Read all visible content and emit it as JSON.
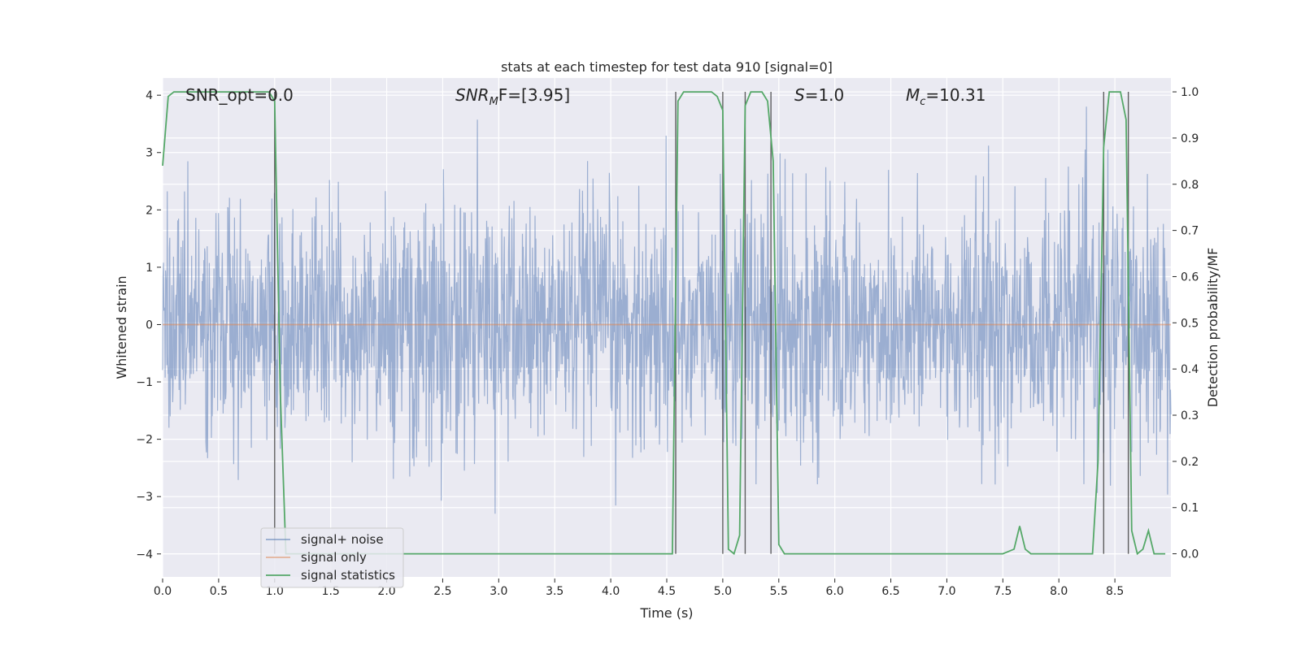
{
  "chart_data": {
    "type": "line",
    "title": "stats at each timestep for test data 910 [signal=0]",
    "xlabel": "Time (s)",
    "ylabel_left": "Whitened strain",
    "ylabel_right": "Detection probability/MF",
    "xlim": [
      0.0,
      9.0
    ],
    "ylim_left": [
      -4.4,
      4.3
    ],
    "ylim_right": [
      -0.05,
      1.03
    ],
    "x_ticks": [
      "0.0",
      "0.5",
      "1.0",
      "1.5",
      "2.0",
      "2.5",
      "3.0",
      "3.5",
      "4.0",
      "4.5",
      "5.0",
      "5.5",
      "6.0",
      "6.5",
      "7.0",
      "7.5",
      "8.0",
      "8.5"
    ],
    "x_tick_values": [
      0.0,
      0.5,
      1.0,
      1.5,
      2.0,
      2.5,
      3.0,
      3.5,
      4.0,
      4.5,
      5.0,
      5.5,
      6.0,
      6.5,
      7.0,
      7.5,
      8.0,
      8.5
    ],
    "y_ticks_left": [
      "−4",
      "−3",
      "−2",
      "−1",
      "0",
      "1",
      "2",
      "3",
      "4"
    ],
    "y_tick_values_left": [
      -4,
      -3,
      -2,
      -1,
      0,
      1,
      2,
      3,
      4
    ],
    "y_ticks_right": [
      "0.0",
      "0.1",
      "0.2",
      "0.3",
      "0.4",
      "0.5",
      "0.6",
      "0.7",
      "0.8",
      "0.9",
      "1.0"
    ],
    "y_tick_values_right": [
      0.0,
      0.1,
      0.2,
      0.3,
      0.4,
      0.5,
      0.6,
      0.7,
      0.8,
      0.9,
      1.0
    ],
    "grid": true,
    "legend_position": "lower-left",
    "annotations": {
      "snr_opt": "SNR_opt=0.0",
      "snr_mf": "SNR",
      "snr_mf_sub": "M",
      "snr_mf_rest": "F=[3.95]",
      "s_italic": "S",
      "s_rest": "=1.0",
      "mc_italic": "M",
      "mc_sub": "c",
      "mc_rest": "=10.31"
    },
    "series": [
      {
        "name": "signal+ noise",
        "axis": "left",
        "color": "#4C72B0",
        "description_values": "whitened noise, amplitude roughly within ±2.5, peaks to ±3.8",
        "values_range": [
          -3.8,
          3.8
        ]
      },
      {
        "name": "signal only",
        "axis": "left",
        "color": "#DD8452",
        "x": [
          0.0,
          9.0
        ],
        "values": [
          0.0,
          0.0
        ]
      },
      {
        "name": "signal statistics",
        "axis": "right",
        "color": "#55A868",
        "x": [
          0.0,
          0.05,
          0.1,
          0.3,
          0.5,
          0.7,
          0.9,
          0.95,
          1.0,
          1.05,
          1.1,
          1.5,
          2.0,
          2.5,
          3.0,
          3.5,
          4.0,
          4.5,
          4.55,
          4.6,
          4.65,
          4.7,
          4.8,
          4.9,
          4.95,
          5.0,
          5.05,
          5.1,
          5.15,
          5.2,
          5.25,
          5.3,
          5.35,
          5.4,
          5.45,
          5.5,
          5.55,
          5.6,
          5.7,
          6.0,
          6.5,
          7.0,
          7.5,
          7.6,
          7.65,
          7.7,
          7.75,
          7.8,
          8.0,
          8.2,
          8.3,
          8.35,
          8.4,
          8.45,
          8.5,
          8.55,
          8.6,
          8.65,
          8.7,
          8.75,
          8.8,
          8.85,
          8.9,
          8.95
        ],
        "values": [
          0.84,
          0.99,
          1.0,
          1.0,
          1.0,
          1.0,
          1.0,
          1.0,
          0.98,
          0.35,
          0.0,
          0.0,
          0.0,
          0.0,
          0.0,
          0.0,
          0.0,
          0.0,
          0.0,
          0.98,
          1.0,
          1.0,
          1.0,
          1.0,
          0.99,
          0.96,
          0.01,
          0.0,
          0.04,
          0.97,
          1.0,
          1.0,
          1.0,
          0.98,
          0.85,
          0.02,
          0.0,
          0.0,
          0.0,
          0.0,
          0.0,
          0.0,
          0.0,
          0.01,
          0.06,
          0.01,
          0.0,
          0.0,
          0.0,
          0.0,
          0.0,
          0.2,
          0.88,
          1.0,
          1.0,
          1.0,
          0.94,
          0.05,
          0.0,
          0.01,
          0.05,
          0.0,
          0.0,
          0.0
        ]
      }
    ],
    "event_markers_x": [
      1.0,
      4.58,
      5.0,
      5.2,
      5.43,
      8.4,
      8.62
    ]
  },
  "colors": {
    "axes_bg": "#EAEAF2",
    "grid": "#FFFFFF",
    "noise": "#4C72B0",
    "signal": "#DD8452",
    "stats": "#55A868",
    "marker": "#3a3a3a"
  }
}
